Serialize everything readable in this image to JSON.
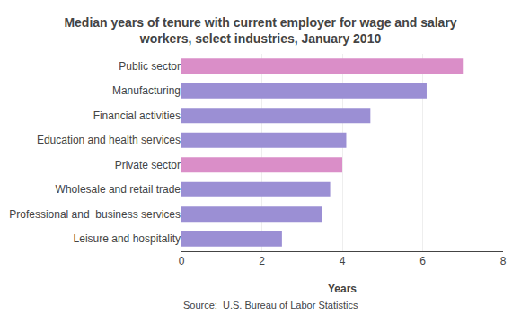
{
  "chart_data": {
    "type": "bar",
    "orientation": "horizontal",
    "title": "Median years of tenure with current employer for wage and salary\nworkers, select industries, January 2010",
    "categories": [
      "Leisure and hospitality",
      "Professional and  business services",
      "Wholesale and retail trade",
      "Private sector",
      "Education and health services",
      "Financial activities",
      "Manufacturing",
      "Public sector"
    ],
    "values": [
      2.5,
      3.5,
      3.7,
      4.0,
      4.1,
      4.7,
      6.1,
      7.0
    ],
    "colors": [
      "#9b8fd4",
      "#9b8fd4",
      "#9b8fd4",
      "#da8ec8",
      "#9b8fd4",
      "#9b8fd4",
      "#9b8fd4",
      "#da8ec8"
    ],
    "xlabel": "Years",
    "xlim": [
      0,
      8
    ],
    "xticks": [
      0,
      2,
      4,
      6,
      8
    ],
    "grid": true,
    "annotations": [
      "Source:  U.S. Bureau of Labor Statistics"
    ]
  }
}
